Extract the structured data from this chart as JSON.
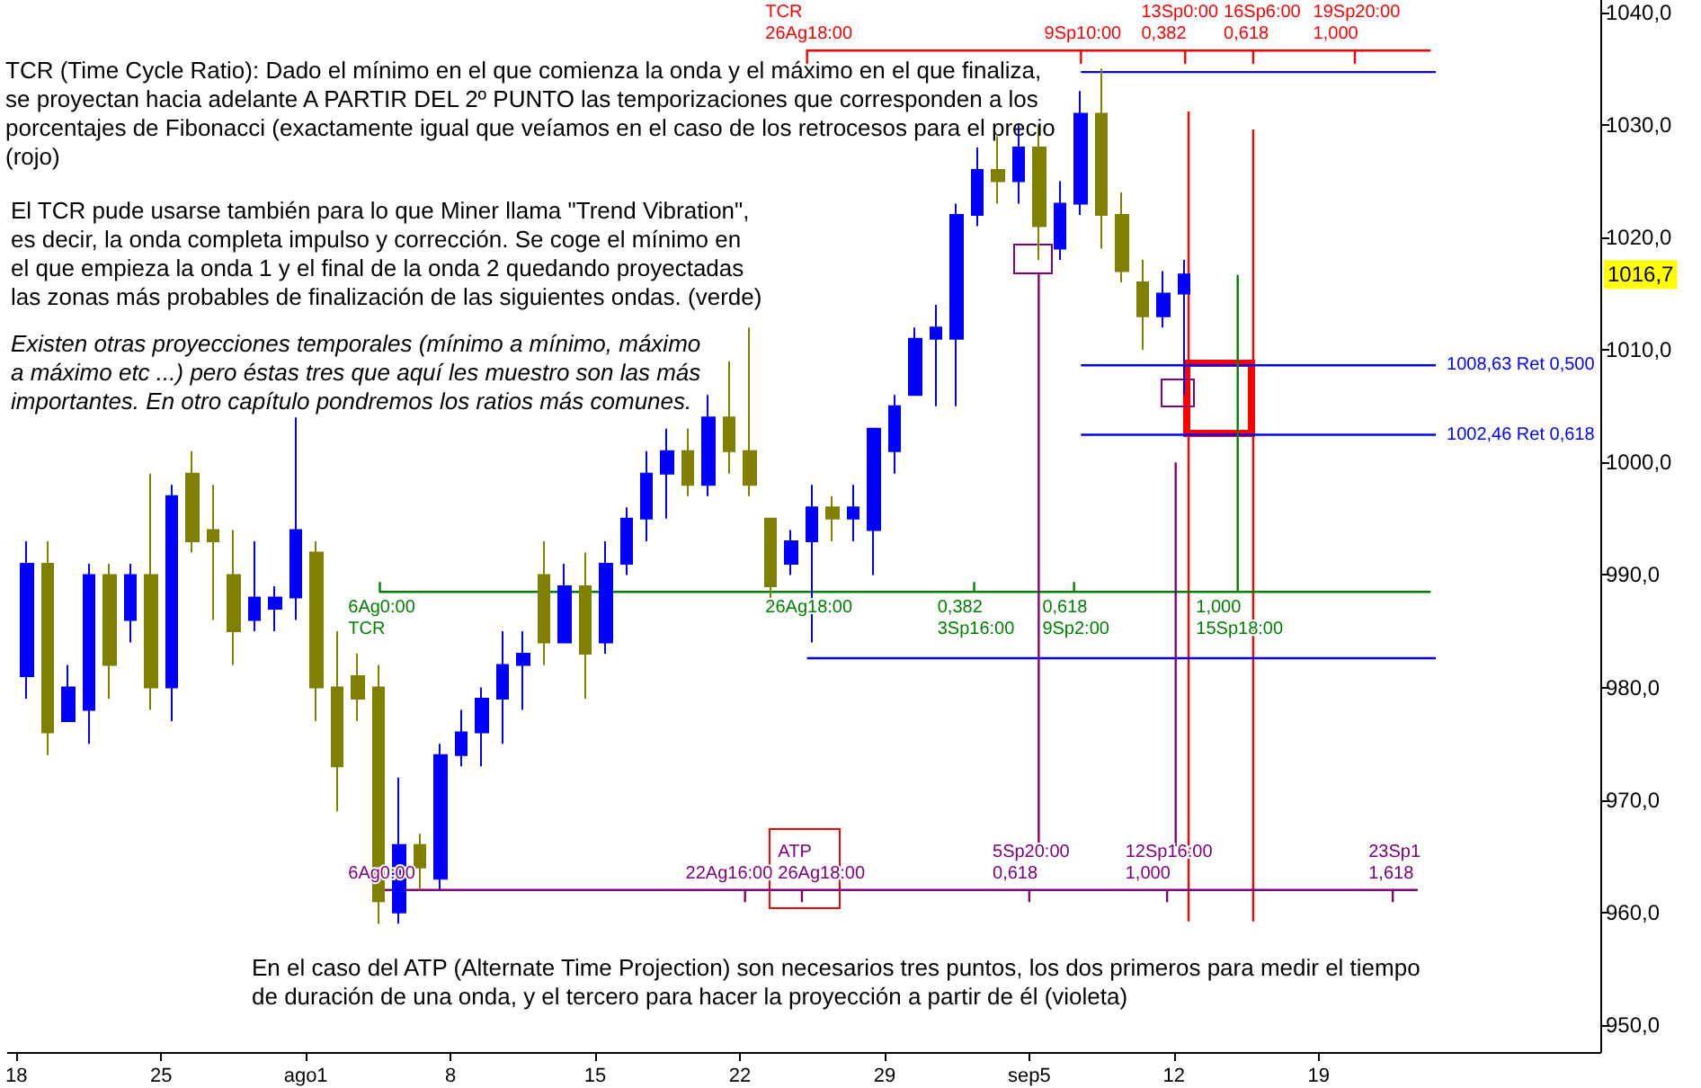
{
  "chart_data": {
    "type": "candlestick",
    "marker": "none",
    "xlim": [
      "--07-17T14:00",
      "--10-02T15:00"
    ],
    "ylim": [
      947.6,
      1041.1
    ],
    "xticks": [
      {
        "value": "--07-18",
        "label": "18"
      },
      {
        "value": "--07-25",
        "label": "25"
      },
      {
        "value": "--08-01",
        "label": "ago1"
      },
      {
        "value": "--08-08",
        "label": "8"
      },
      {
        "value": "--08-15",
        "label": "15"
      },
      {
        "value": "--08-22",
        "label": "22"
      },
      {
        "value": "--08-29",
        "label": "29"
      },
      {
        "value": "--09-05",
        "label": "sep5"
      },
      {
        "value": "--09-12",
        "label": "12"
      },
      {
        "value": "--09-19",
        "label": "19"
      }
    ],
    "yticks": [
      {
        "value": 950,
        "label": "950,0"
      },
      {
        "value": 960,
        "label": "960,0"
      },
      {
        "value": 970,
        "label": "970,0"
      },
      {
        "value": 980,
        "label": "980,0"
      },
      {
        "value": 990,
        "label": "990,0"
      },
      {
        "value": 1000,
        "label": "1000,0"
      },
      {
        "value": 1010,
        "label": "1010,0"
      },
      {
        "value": 1020,
        "label": "1020,0"
      },
      {
        "value": 1030,
        "label": "1030,0"
      },
      {
        "value": 1040,
        "label": "1040,0"
      }
    ],
    "x": [
      "--07-18T12:00",
      "--07-19T12:00",
      "--07-20T12:00",
      "--07-21T12:00",
      "--07-22T12:00",
      "--07-23T12:00",
      "--07-24T12:00",
      "--07-25T12:00",
      "--07-26T12:00",
      "--07-27T12:00",
      "--07-28T12:00",
      "--07-29T12:00",
      "--07-30T12:00",
      "--07-31T12:00",
      "--08-01T12:00",
      "--08-02T12:00",
      "--08-03T12:00",
      "--08-04T12:00",
      "--08-05T12:00",
      "--08-06T12:00",
      "--08-07T12:00",
      "--08-08T12:00",
      "--08-09T12:00",
      "--08-10T12:00",
      "--08-11T12:00",
      "--08-12T12:00",
      "--08-13T12:00",
      "--08-14T12:00",
      "--08-15T12:00",
      "--08-16T12:00",
      "--08-17T12:00",
      "--08-18T12:00",
      "--08-19T12:00",
      "--08-20T12:00",
      "--08-21T12:00",
      "--08-22T12:00",
      "--08-23T12:00",
      "--08-24T12:00",
      "--08-25T12:00",
      "--08-26T12:00",
      "--08-27T12:00",
      "--08-28T12:00",
      "--08-29T12:00",
      "--08-30T12:00",
      "--08-31T12:00",
      "--09-01T12:00",
      "--09-02T12:00",
      "--09-03T12:00",
      "--09-04T12:00",
      "--09-05T12:00",
      "--09-06T12:00",
      "--09-07T12:00",
      "--09-08T12:00",
      "--09-09T12:00",
      "--09-10T12:00",
      "--09-11T12:00",
      "--09-12T12:00"
    ],
    "ohlc": [
      [
        981,
        993,
        979,
        991
      ],
      [
        991,
        993,
        974,
        976
      ],
      [
        977,
        982,
        977,
        980
      ],
      [
        978,
        991,
        975,
        990
      ],
      [
        990,
        991,
        979,
        982
      ],
      [
        986,
        991,
        984,
        990
      ],
      [
        990,
        999,
        978,
        980
      ],
      [
        980,
        998,
        977,
        997
      ],
      [
        999,
        1001,
        992,
        993
      ],
      [
        994,
        998,
        986,
        993
      ],
      [
        990,
        994,
        982,
        985
      ],
      [
        986,
        993,
        985,
        988
      ],
      [
        987,
        989,
        985,
        988
      ],
      [
        988,
        1004,
        986,
        994
      ],
      [
        992,
        993,
        977,
        980
      ],
      [
        980,
        985,
        969,
        973
      ],
      [
        981,
        983,
        977,
        979
      ],
      [
        980,
        982,
        959,
        961
      ],
      [
        960,
        972,
        959,
        966
      ],
      [
        966,
        967,
        962,
        964
      ],
      [
        963,
        975,
        962,
        974
      ],
      [
        974,
        978,
        973,
        976
      ],
      [
        976,
        980,
        973,
        979
      ],
      [
        979,
        985,
        975,
        982
      ],
      [
        982,
        985,
        978,
        983
      ],
      [
        990,
        993,
        982,
        984
      ],
      [
        984,
        991,
        984,
        989
      ],
      [
        989,
        992,
        979,
        983
      ],
      [
        984,
        993,
        983,
        991
      ],
      [
        991,
        996,
        990,
        995
      ],
      [
        995,
        1001,
        993,
        999
      ],
      [
        999,
        1003,
        995,
        1001
      ],
      [
        1001,
        1003,
        997,
        998
      ],
      [
        998,
        1006,
        997,
        1004
      ],
      [
        1004,
        1009,
        999,
        1001
      ],
      [
        1001,
        1012,
        997,
        998
      ],
      [
        995,
        995,
        987,
        989
      ],
      [
        991,
        994,
        990,
        993
      ],
      [
        993,
        998,
        984,
        996
      ],
      [
        996,
        997,
        993,
        995
      ],
      [
        995,
        998,
        993,
        996
      ],
      [
        994,
        1003,
        990,
        1003
      ],
      [
        1001,
        1006,
        999,
        1005
      ],
      [
        1006,
        1012,
        1006,
        1011
      ],
      [
        1011,
        1014,
        1005,
        1012
      ],
      [
        1011,
        1023,
        1005,
        1022
      ],
      [
        1022,
        1028,
        1021,
        1026
      ],
      [
        1026,
        1029,
        1023,
        1025
      ],
      [
        1025,
        1030,
        1023,
        1028
      ],
      [
        1028,
        1030,
        1018,
        1021
      ],
      [
        1019,
        1025,
        1018,
        1023
      ],
      [
        1023,
        1033,
        1022,
        1031
      ],
      [
        1031,
        1035,
        1019,
        1022
      ],
      [
        1022,
        1024,
        1016,
        1017
      ],
      [
        1016,
        1018,
        1010,
        1013
      ],
      [
        1013,
        1017,
        1012,
        1015
      ],
      [
        1015,
        1018,
        1006,
        1016.7
      ]
    ],
    "colors": [
      "#0000ff",
      "#808000",
      "#0000ff",
      "#0000ff",
      "#808000",
      "#0000ff",
      "#808000",
      "#0000ff",
      "#808000",
      "#808000",
      "#808000",
      "#0000ff",
      "#0000ff",
      "#0000ff",
      "#808000",
      "#808000",
      "#808000",
      "#808000",
      "#0000ff",
      "#808000",
      "#0000ff",
      "#0000ff",
      "#0000ff",
      "#0000ff",
      "#0000ff",
      "#808000",
      "#0000ff",
      "#808000",
      "#0000ff",
      "#0000ff",
      "#0000ff",
      "#0000ff",
      "#808000",
      "#0000ff",
      "#808000",
      "#808000",
      "#808000",
      "#0000ff",
      "#0000ff",
      "#808000",
      "#0000ff",
      "#0000ff",
      "#0000ff",
      "#0000ff",
      "#0000ff",
      "#0000ff",
      "#0000ff",
      "#808000",
      "#0000ff",
      "#808000",
      "#0000ff",
      "#0000ff",
      "#808000",
      "#808000",
      "#808000",
      "#0000ff",
      "#0000ff"
    ],
    "series": [
      {
        "type": "line",
        "color": "#ff0000",
        "x": [
          "--08-25T06:00",
          "--08-25T06:00",
          "--08-25T06:00",
          "--09-07T12:00",
          "--09-07T12:00",
          "--09-07T12:00",
          "--09-12T13:00",
          "--09-12T13:00",
          "--09-12T13:00",
          "--09-15T20:00",
          "--09-15T20:00",
          "--09-15T20:00",
          "--09-20T18:00",
          "--09-20T18:00",
          "--09-20T18:00",
          "--09-24T10:00"
        ],
        "values": [
          1036.6,
          1035.5,
          1036.6,
          1036.6,
          1035.5,
          1036.6,
          1036.6,
          1035.5,
          1036.6,
          1036.6,
          1035.5,
          1036.6,
          1036.6,
          1035.5,
          1036.6,
          1036.6
        ]
      },
      {
        "type": "line",
        "color": "#ff0000",
        "x": [
          "--09-12T17:00",
          "--09-12T17:00"
        ],
        "values": [
          1031.2,
          959.2
        ]
      },
      {
        "type": "line",
        "color": "#ff0000",
        "x": [
          "--09-15T20:00",
          "--09-15T20:00"
        ],
        "values": [
          1029.6,
          959.2
        ]
      },
      {
        "type": "line",
        "color": "#0000ff",
        "x": [
          "--09-07T12:00",
          "--09-24T16:00"
        ],
        "values": [
          1034.7,
          1034.7
        ]
      },
      {
        "type": "line",
        "color": "#0000ff",
        "x": [
          "--09-07T12:00",
          "--09-24T16:00"
        ],
        "values": [
          1008.63,
          1008.63
        ]
      },
      {
        "type": "line",
        "color": "#0000ff",
        "x": [
          "--09-07T12:00",
          "--09-24T16:00"
        ],
        "values": [
          1002.46,
          1002.46
        ]
      },
      {
        "type": "line",
        "color": "#0000ff",
        "x": [
          "--08-25T06:00",
          "--09-24T16:00"
        ],
        "values": [
          982.6,
          982.6
        ]
      },
      {
        "type": "line",
        "color": "#008000",
        "x": [
          "--08-04T14:00",
          "--08-04T14:00",
          "--08-04T14:00",
          "--08-25T06:00",
          "--09-02T08:00",
          "--09-02T08:00",
          "--09-02T08:00",
          "--09-07T04:00",
          "--09-07T04:00",
          "--09-07T04:00",
          "--09-15T02:00",
          "--09-15T02:00",
          "--09-15T02:00",
          "--09-24T10:00"
        ],
        "values": [
          988.5,
          989.3,
          988.5,
          988.5,
          988.5,
          989.3,
          988.5,
          988.5,
          989.3,
          988.5,
          988.5,
          1016.6,
          988.5,
          988.5
        ]
      },
      {
        "type": "line",
        "color": "#800080",
        "x": [
          "--08-04T14:00",
          "--08-22T06:00",
          "--08-22T06:00",
          "--08-22T06:00",
          "--08-25T00:00",
          "--08-25T00:00",
          "--08-25T00:00",
          "--09-05T00:00",
          "--09-05T00:00",
          "--09-05T00:00",
          "--09-11T16:00",
          "--09-11T16:00",
          "--09-11T16:00",
          "--09-22T14:00",
          "--09-22T14:00",
          "--09-22T14:00",
          "--09-23T19:00"
        ],
        "values": [
          962,
          962,
          961,
          962,
          962,
          961,
          962,
          962,
          961,
          962,
          962,
          961,
          962,
          962,
          961,
          962,
          962
        ]
      },
      {
        "type": "line",
        "color": "#800080",
        "x": [
          "--09-05T11:00",
          "--09-05T11:00"
        ],
        "values": [
          1016.8,
          965.9
        ]
      },
      {
        "type": "line",
        "color": "#800080",
        "x": [
          "--09-12T02:00",
          "--09-12T02:00"
        ],
        "values": [
          1000,
          965.9
        ]
      }
    ],
    "annotations": [
      "TCR (Time Cycle Ratio): Dado el mínimo en el que comienza la onda y el máximo en el que finaliza,\nse proyectan hacia adelante A PARTIR DEL 2º PUNTO las temporizaciones que corresponden a los\nporcentajes de Fibonacci (exactamente igual que veíamos en el caso de los retrocesos para el precio\n(rojo)",
      "El TCR pude usarse también para lo que Miner llama \"Trend Vibration\",\nes decir, la onda completa impulso y corrección. Se coge el mínimo en\nel que empieza la onda 1 y el final de la onda 2 quedando proyectadas\nlas zonas más probables de finalización de las siguientes ondas. (verde)",
      "Existen otras proyecciones temporales (mínimo a mínimo, máximo\na máximo etc ...) pero éstas tres que aquí les muestro son las más\nimportantes. En otro capítulo pondremos los ratios más comunes.",
      "En el caso del ATP (Alternate Time Projection) son necesarios tres puntos, los dos primeros para medir el tiempo\nde duración de una onda, y el tercero para hacer la proyección a partir de él (violeta)",
      {
        "text": "1016,7",
        "y": 1016.7
      },
      {
        "text": "TCR\n26Ag18:00",
        "x": "--08-25T06:00",
        "y": 1036.6
      },
      {
        "text": "9Sp10:00",
        "x": "--09-07T12:00",
        "y": 1036.6
      },
      {
        "text": "13Sp0:00\n0,382",
        "x": "--09-12T13:00",
        "y": 1036.6
      },
      {
        "text": "16Sp6:00\n0,618",
        "x": "--09-15T20:00",
        "y": 1036.6
      },
      {
        "text": "19Sp20:00\n1,000",
        "x": "--09-20T18:00",
        "y": 1036.6
      },
      {
        "text": "1008,63 Ret 0,500",
        "x": "--09-24T16:00",
        "y": 1008.63
      },
      {
        "text": "1002,46 Ret 0,618",
        "x": "--09-24T16:00",
        "y": 1002.46
      },
      {
        "text": "6Ag0:00\nTCR",
        "x": "--08-04T14:00",
        "y": 988.5
      },
      {
        "text": "26Ag18:00",
        "x": "--08-25T06:00",
        "y": 988.5
      },
      {
        "text": "0,382\n3Sp16:00",
        "x": "--09-02T08:00",
        "y": 988.5
      },
      {
        "text": "0,618\n9Sp2:00",
        "x": "--09-07T04:00",
        "y": 988.5
      },
      {
        "text": "1,000\n15Sp18:00",
        "x": "--09-15T02:00",
        "y": 988.5
      },
      {
        "text": "6Ag0:00",
        "x": "--08-04T14:00",
        "y": 962
      },
      {
        "text": "22Ag16:00",
        "x": "--08-22T06:00",
        "y": 962
      },
      {
        "text": "ATP\n26Ag18:00",
        "x": "--08-25T00:00",
        "y": 962
      },
      {
        "text": "5Sp20:00\n0,618",
        "x": "--09-05T00:00",
        "y": 962
      },
      {
        "text": "12Sp16:00\n1,000",
        "x": "--09-11T16:00",
        "y": 962
      },
      {
        "text": "23Sp1\n1,618",
        "x": "--09-22T14:00",
        "y": 962
      }
    ]
  }
}
